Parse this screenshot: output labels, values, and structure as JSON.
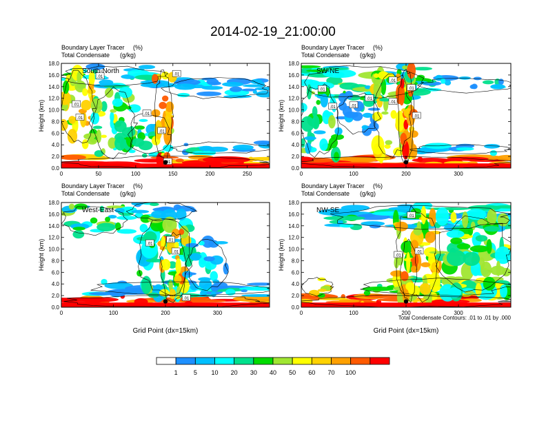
{
  "figure": {
    "title": "2014-02-19_21:00:00",
    "contour_note": "Total Condensate Contours: .01 to .01 by .000"
  },
  "colorbar": {
    "labels": [
      "1",
      "5",
      "10",
      "20",
      "30",
      "40",
      "50",
      "60",
      "70",
      "100"
    ],
    "colors": [
      "#ffffff",
      "#1e90ff",
      "#00bfff",
      "#00ffff",
      "#00e08c",
      "#00dc00",
      "#a0e632",
      "#ffff00",
      "#ffd200",
      "#ffa000",
      "#ff5a00",
      "#ff0000"
    ]
  },
  "colors": {
    "contour_line": "#000000",
    "marker": "#000000",
    "frame": "#000000"
  },
  "chart_data": [
    {
      "type": "heatmap",
      "id": "south-north",
      "panel_label": "South-North",
      "field_title": "Boundary Layer Tracer",
      "field_units": "(%)",
      "contour_title": "Total Condensate",
      "contour_units": "(g/kg)",
      "ylabel": "Height (km)",
      "xlabel": "",
      "xlim": [
        0,
        280
      ],
      "ylim": [
        0,
        18
      ],
      "xticks": [
        0,
        50,
        100,
        150,
        200,
        250
      ],
      "yticks": [
        "0.0",
        "2.0",
        "4.0",
        "6.0",
        "8.0",
        "10.0",
        "12.0",
        "14.0",
        "16.0",
        "18.0"
      ],
      "marker": {
        "x": 140,
        "y": 1.0
      },
      "contour_labels": [
        {
          "x": 52,
          "y": 15.8,
          "text": ".01"
        },
        {
          "x": 155,
          "y": 16.2,
          "text": ".01"
        },
        {
          "x": 20,
          "y": 11.0,
          "text": ".01"
        },
        {
          "x": 25,
          "y": 8.7,
          "text": ".01"
        },
        {
          "x": 115,
          "y": 9.4,
          "text": ".01"
        },
        {
          "x": 135,
          "y": 6.4,
          "text": ".01"
        },
        {
          "x": 143,
          "y": 1.1,
          "text": ".01"
        }
      ],
      "cloud_bands": [
        {
          "x0": 140,
          "x1": 280,
          "y0": 12.0,
          "y1": 15.5,
          "level": 2
        },
        {
          "x0": 150,
          "x1": 280,
          "y0": 2.5,
          "y1": 4.5,
          "level": 2
        },
        {
          "x0": 0,
          "x1": 280,
          "y0": 0.0,
          "y1": 2.0,
          "level": 10
        },
        {
          "x0": 0,
          "x1": 140,
          "y0": 14.0,
          "y1": 17.5,
          "level": 3
        }
      ],
      "cloud_columns": [
        {
          "x0": 0,
          "x1": 45,
          "y0": 4.0,
          "y1": 16.5,
          "level": 7
        },
        {
          "x0": 40,
          "x1": 100,
          "y0": 2.0,
          "y1": 13.5,
          "level": 5
        },
        {
          "x0": 90,
          "x1": 145,
          "y0": 2.0,
          "y1": 9.5,
          "level": 4
        },
        {
          "x0": 125,
          "x1": 150,
          "y0": 1.0,
          "y1": 16.5,
          "level": 9
        }
      ]
    },
    {
      "type": "heatmap",
      "id": "sw-ne",
      "panel_label": "SW-NE",
      "field_title": "Boundary Layer Tracer",
      "field_units": "(%)",
      "contour_title": "Total Condensate",
      "contour_units": "(g/kg)",
      "ylabel": "Height (km)",
      "xlabel": "",
      "xlim": [
        0,
        400
      ],
      "ylim": [
        0,
        18
      ],
      "xticks": [
        0,
        100,
        200,
        300
      ],
      "yticks": [
        "0.0",
        "2.0",
        "4.0",
        "6.0",
        "8.0",
        "10.0",
        "12.0",
        "14.0",
        "16.0",
        "18.0"
      ],
      "marker": {
        "x": 200,
        "y": 1.0
      },
      "contour_labels": [
        {
          "x": 175,
          "y": 15.1,
          "text": ".01"
        },
        {
          "x": 40,
          "y": 13.6,
          "text": ".01"
        },
        {
          "x": 210,
          "y": 13.8,
          "text": ".01"
        },
        {
          "x": 130,
          "y": 12.0,
          "text": ".01"
        },
        {
          "x": 60,
          "y": 10.6,
          "text": ".01"
        },
        {
          "x": 100,
          "y": 10.8,
          "text": ".01"
        },
        {
          "x": 175,
          "y": 11.4,
          "text": ".01"
        },
        {
          "x": 220,
          "y": 9.0,
          "text": ".01"
        }
      ],
      "cloud_bands": [
        {
          "x0": 230,
          "x1": 400,
          "y0": 13.0,
          "y1": 15.5,
          "level": 2
        },
        {
          "x0": 0,
          "x1": 400,
          "y0": 0.0,
          "y1": 2.0,
          "level": 10
        },
        {
          "x0": 0,
          "x1": 240,
          "y0": 12.0,
          "y1": 17.5,
          "level": 4
        },
        {
          "x0": 210,
          "x1": 400,
          "y0": 2.5,
          "y1": 4.0,
          "level": 2
        }
      ],
      "cloud_columns": [
        {
          "x0": 0,
          "x1": 70,
          "y0": 2.0,
          "y1": 14.5,
          "level": 4
        },
        {
          "x0": 70,
          "x1": 150,
          "y0": 6.0,
          "y1": 13.0,
          "level": 2
        },
        {
          "x0": 140,
          "x1": 210,
          "y0": 2.0,
          "y1": 16.5,
          "level": 6
        },
        {
          "x0": 185,
          "x1": 215,
          "y0": 1.0,
          "y1": 17.5,
          "level": 9
        }
      ]
    },
    {
      "type": "heatmap",
      "id": "west-east",
      "panel_label": "West-East",
      "field_title": "Boundary Layer Tracer",
      "field_units": "(%)",
      "contour_title": "Total Condensate",
      "contour_units": "(g/kg)",
      "ylabel": "Height (km)",
      "xlabel": "Grid Point (dx=15km)",
      "xlim": [
        0,
        400
      ],
      "ylim": [
        0,
        18
      ],
      "xticks": [
        0,
        100,
        200,
        300
      ],
      "yticks": [
        "0.0",
        "2.0",
        "4.0",
        "6.0",
        "8.0",
        "10.0",
        "12.0",
        "14.0",
        "16.0",
        "18.0"
      ],
      "marker": {
        "x": 200,
        "y": 1.0
      },
      "contour_labels": [
        {
          "x": 210,
          "y": 11.6,
          "text": ".01"
        },
        {
          "x": 170,
          "y": 11.0,
          "text": ".01"
        },
        {
          "x": 220,
          "y": 9.6,
          "text": ".01"
        },
        {
          "x": 240,
          "y": 1.6,
          "text": ".01"
        }
      ],
      "cloud_bands": [
        {
          "x0": 0,
          "x1": 130,
          "y0": 12.5,
          "y1": 17.5,
          "level": 4
        },
        {
          "x0": 0,
          "x1": 400,
          "y0": 0.0,
          "y1": 2.0,
          "level": 10
        },
        {
          "x0": 50,
          "x1": 400,
          "y0": 2.0,
          "y1": 4.5,
          "level": 2
        },
        {
          "x0": 130,
          "x1": 260,
          "y0": 15.0,
          "y1": 18.0,
          "level": 2
        }
      ],
      "cloud_columns": [
        {
          "x0": 150,
          "x1": 250,
          "y0": 2.0,
          "y1": 16.0,
          "level": 4
        },
        {
          "x0": 190,
          "x1": 240,
          "y0": 1.0,
          "y1": 13.0,
          "level": 8
        },
        {
          "x0": 240,
          "x1": 320,
          "y0": 3.0,
          "y1": 11.5,
          "level": 2
        }
      ]
    },
    {
      "type": "heatmap",
      "id": "nw-se",
      "panel_label": "NW-SE",
      "field_title": "Boundary Layer Tracer",
      "field_units": "(%)",
      "contour_title": "Total Condensate",
      "contour_units": "(g/kg)",
      "ylabel": "Height (km)",
      "xlabel": "Grid Point (dx=15km)",
      "xlim": [
        0,
        400
      ],
      "ylim": [
        0,
        18
      ],
      "xticks": [
        0,
        100,
        200,
        300
      ],
      "yticks": [
        "0.0",
        "2.0",
        "4.0",
        "6.0",
        "8.0",
        "10.0",
        "12.0",
        "14.0",
        "16.0",
        "18.0"
      ],
      "marker": {
        "x": 200,
        "y": 1.0
      },
      "contour_labels": [
        {
          "x": 210,
          "y": 15.8,
          "text": ".01"
        },
        {
          "x": 185,
          "y": 9.0,
          "text": ".01"
        },
        {
          "x": 225,
          "y": 9.6,
          "text": ".01"
        }
      ],
      "cloud_bands": [
        {
          "x0": 60,
          "x1": 400,
          "y0": 13.5,
          "y1": 17.5,
          "level": 3
        },
        {
          "x0": 0,
          "x1": 400,
          "y0": 0.0,
          "y1": 2.0,
          "level": 10
        },
        {
          "x0": 120,
          "x1": 400,
          "y0": 2.0,
          "y1": 5.0,
          "level": 5
        },
        {
          "x0": 0,
          "x1": 60,
          "y0": 2.0,
          "y1": 5.0,
          "level": 7
        }
      ],
      "cloud_columns": [
        {
          "x0": 180,
          "x1": 260,
          "y0": 1.0,
          "y1": 17.5,
          "level": 7
        },
        {
          "x0": 260,
          "x1": 400,
          "y0": 2.0,
          "y1": 16.0,
          "level": 5
        },
        {
          "x0": 190,
          "x1": 220,
          "y0": 1.0,
          "y1": 12.0,
          "level": 9
        }
      ]
    }
  ]
}
